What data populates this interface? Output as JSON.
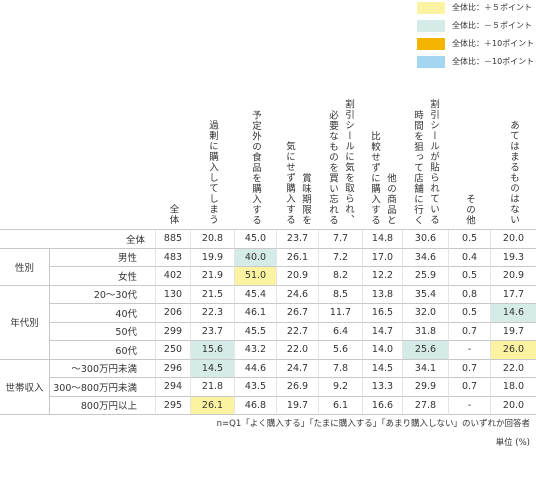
{
  "legend": [
    {
      "label": "全体比：＋５ポイント",
      "color": "#fbf3a1"
    },
    {
      "label": "全体比：－５ポイント",
      "color": "#d5ebe7"
    },
    {
      "label": "全体比：＋10ポイント",
      "color": "#f4b400"
    },
    {
      "label": "全体比：－10ポイント",
      "color": "#a3d6f0"
    }
  ],
  "table": {
    "columns": [
      [
        "全体"
      ],
      [
        "過剰に購入してしまう"
      ],
      [
        "予定外の食品を購入する"
      ],
      [
        "賞味期限を",
        "気にせず購入する"
      ],
      [
        "割引シールに気を取られ、",
        "必要なものを買い忘れる"
      ],
      [
        "他の商品と",
        "比較せずに購入する"
      ],
      [
        "割引シールが貼られている",
        "時間を狙って店舗に行く"
      ],
      [
        "その他"
      ],
      [
        "あてはまるものはない"
      ]
    ],
    "groups": [
      {
        "rows": [
          {
            "label": "全体",
            "values": [
              "885",
              "20.8",
              "45.0",
              "23.7",
              "7.7",
              "14.8",
              "30.6",
              "0.5",
              "20.0"
            ],
            "highlights": []
          }
        ]
      },
      {
        "label": "性別",
        "rows": [
          {
            "label": "男性",
            "values": [
              "483",
              "19.9",
              "40.0",
              "26.1",
              "7.2",
              "17.0",
              "34.6",
              "0.4",
              "19.3"
            ],
            "highlights": [
              {
                "col": 2,
                "legend": 1
              }
            ]
          },
          {
            "label": "女性",
            "values": [
              "402",
              "21.9",
              "51.0",
              "20.9",
              "8.2",
              "12.2",
              "25.9",
              "0.5",
              "20.9"
            ],
            "highlights": [
              {
                "col": 2,
                "legend": 0
              }
            ]
          }
        ]
      },
      {
        "label": "年代別",
        "rows": [
          {
            "label": "20～30代",
            "values": [
              "130",
              "21.5",
              "45.4",
              "24.6",
              "8.5",
              "13.8",
              "35.4",
              "0.8",
              "17.7"
            ],
            "highlights": []
          },
          {
            "label": "40代",
            "values": [
              "206",
              "22.3",
              "46.1",
              "26.7",
              "11.7",
              "16.5",
              "32.0",
              "0.5",
              "14.6"
            ],
            "highlights": [
              {
                "col": 8,
                "legend": 1
              }
            ]
          },
          {
            "label": "50代",
            "values": [
              "299",
              "23.7",
              "45.5",
              "22.7",
              "6.4",
              "14.7",
              "31.8",
              "0.7",
              "19.7"
            ],
            "highlights": []
          },
          {
            "label": "60代",
            "values": [
              "250",
              "15.6",
              "43.2",
              "22.0",
              "5.6",
              "14.0",
              "25.6",
              "-",
              "26.0"
            ],
            "highlights": [
              {
                "col": 1,
                "legend": 1
              },
              {
                "col": 6,
                "legend": 1
              },
              {
                "col": 8,
                "legend": 0
              }
            ]
          }
        ]
      },
      {
        "label": "世帯収入",
        "rows": [
          {
            "label": "～300万円未満",
            "values": [
              "296",
              "14.5",
              "44.6",
              "24.7",
              "7.8",
              "14.5",
              "34.1",
              "0.7",
              "22.0"
            ],
            "highlights": [
              {
                "col": 1,
                "legend": 1
              }
            ]
          },
          {
            "label": "300～800万円未満",
            "values": [
              "294",
              "21.8",
              "43.5",
              "26.9",
              "9.2",
              "13.3",
              "29.9",
              "0.7",
              "18.0"
            ],
            "highlights": []
          },
          {
            "label": "800万円以上",
            "values": [
              "295",
              "26.1",
              "46.8",
              "19.7",
              "6.1",
              "16.6",
              "27.8",
              "-",
              "20.0"
            ],
            "highlights": [
              {
                "col": 1,
                "legend": 0
              }
            ]
          }
        ]
      }
    ]
  },
  "notes": [
    "n=Q1「よく購入する」「たまに購入する」「あまり購入しない」のいずれか回答者",
    "単位 (%)"
  ]
}
